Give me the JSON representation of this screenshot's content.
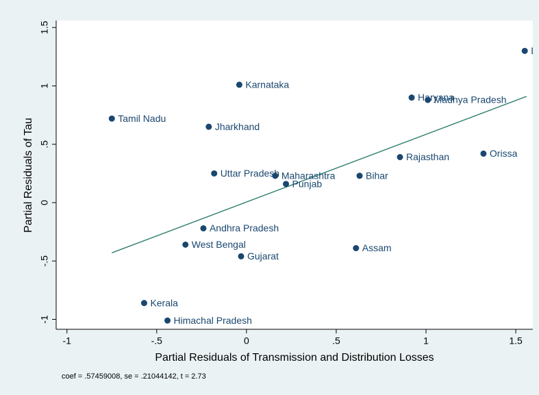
{
  "chart_data": {
    "type": "scatter",
    "xlabel": "Partial Residuals of Transmission and Distribution Losses",
    "ylabel": "Partial Residuals of Tau",
    "note": "coef = .57459008, se = .21044142, t = 2.73",
    "xlim": [
      -1.06,
      1.595
    ],
    "ylim": [
      -1.085,
      1.56
    ],
    "xticks": [
      -1,
      {
        "value": -0.5,
        "label": "-.5"
      },
      0,
      {
        "value": 0.5,
        "label": ".5"
      },
      1,
      1.5
    ],
    "yticks": [
      -1,
      {
        "value": -0.5,
        "label": "-.5"
      },
      0,
      {
        "value": 0.5,
        "label": ".5"
      },
      1,
      1.5
    ],
    "series": [
      {
        "type": "scatter",
        "color": "#1a476f",
        "labels": [
          "D",
          "Karnataka",
          "Haryana",
          "Madhya Pradesh",
          "Tamil Nadu",
          "Jharkhand",
          "Rajasthan",
          "Orissa",
          "Uttar Pradesh",
          "Maharashtra",
          "Bihar",
          "Punjab",
          "Andhra Pradesh",
          "West Bengal",
          "Gujarat",
          "Assam",
          "Kerala",
          "Himachal Pradesh"
        ],
        "x": [
          1.55,
          -0.04,
          0.92,
          1.01,
          -0.75,
          -0.21,
          0.855,
          1.32,
          -0.18,
          0.16,
          0.63,
          0.22,
          -0.24,
          -0.34,
          -0.03,
          0.61,
          -0.57,
          -0.44
        ],
        "values": [
          1.3,
          1.01,
          0.9,
          0.88,
          0.72,
          0.65,
          0.39,
          0.42,
          0.25,
          0.23,
          0.23,
          0.16,
          -0.22,
          -0.36,
          -0.46,
          -0.39,
          -0.86,
          -1.01
        ]
      },
      {
        "type": "line",
        "color": "#2f7d6e",
        "x": [
          -0.75,
          1.56
        ],
        "values": [
          -0.43,
          0.91
        ]
      }
    ]
  }
}
